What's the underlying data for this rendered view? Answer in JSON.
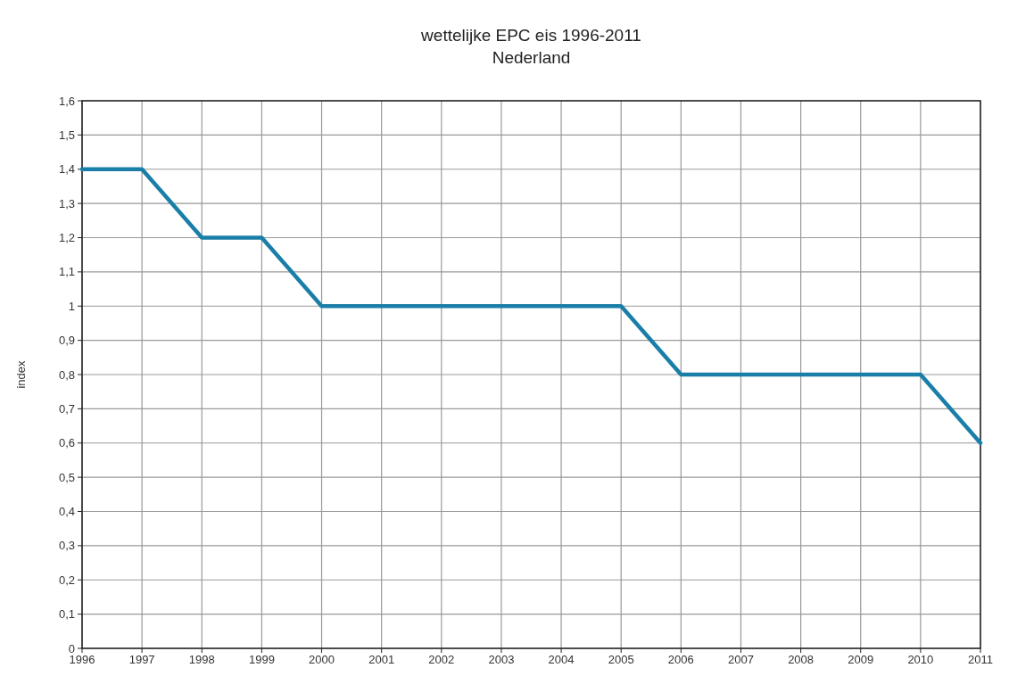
{
  "chart_data": {
    "type": "line",
    "title": "wettelijke EPC eis 1996-2011",
    "subtitle": "Nederland",
    "ylabel": "index",
    "x": [
      1996,
      1997,
      1998,
      1999,
      2000,
      2001,
      2002,
      2003,
      2004,
      2005,
      2006,
      2007,
      2008,
      2009,
      2010,
      2011
    ],
    "series": [
      {
        "color": "#1a7fa8",
        "values": [
          1.4,
          1.4,
          1.2,
          1.2,
          1,
          1,
          1,
          1,
          1,
          1,
          0.8,
          0.8,
          0.8,
          0.8,
          0.8,
          0.6
        ]
      }
    ],
    "xlim": [
      1996,
      2011
    ],
    "xticks": [
      1996,
      1997,
      1998,
      1999,
      2000,
      2001,
      2002,
      2003,
      2004,
      2005,
      2006,
      2007,
      2008,
      2009,
      2010,
      2011
    ],
    "ylim": [
      0,
      1.6
    ],
    "yticks": [
      0,
      {
        "value": 0.1,
        "label": "0,1"
      },
      {
        "value": 0.2,
        "label": "0,2"
      },
      {
        "value": 0.3,
        "label": "0,3"
      },
      {
        "value": 0.4,
        "label": "0,4"
      },
      {
        "value": 0.5,
        "label": "0,5"
      },
      {
        "value": 0.6,
        "label": "0,6"
      },
      {
        "value": 0.7,
        "label": "0,7"
      },
      {
        "value": 0.8,
        "label": "0,8"
      },
      {
        "value": 0.9,
        "label": "0,9"
      },
      1,
      {
        "value": 1.1,
        "label": "1,1"
      },
      {
        "value": 1.2,
        "label": "1,2"
      },
      {
        "value": 1.3,
        "label": "1,3"
      },
      {
        "value": 1.4,
        "label": "1,4"
      },
      {
        "value": 1.5,
        "label": "1,5"
      },
      {
        "value": 1.6,
        "label": "1,6"
      }
    ],
    "grid": true,
    "marker": "none",
    "line_style": "solid"
  }
}
